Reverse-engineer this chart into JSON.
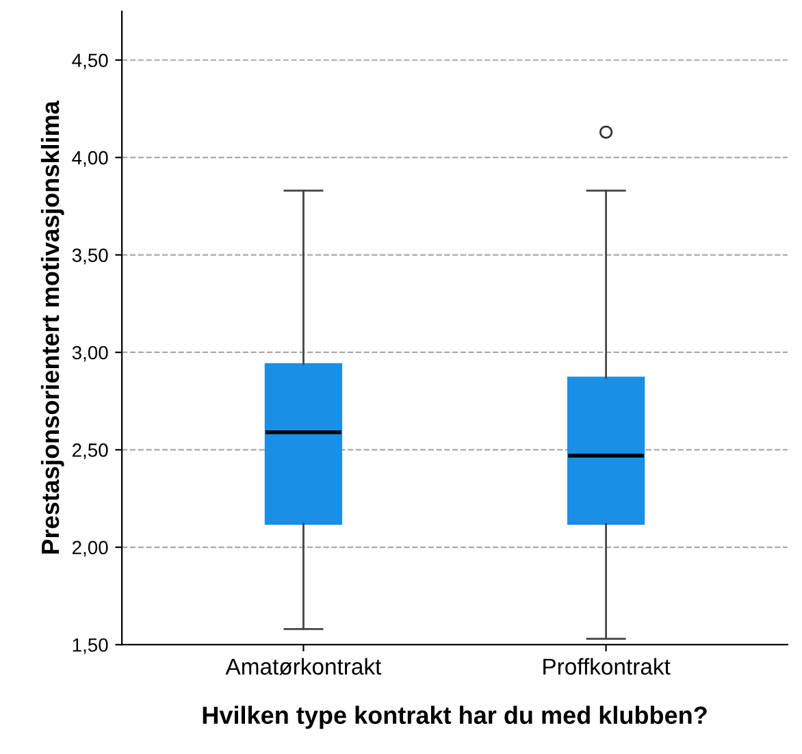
{
  "chart_data": {
    "type": "box",
    "xlabel": "Hvilken type kontrakt har du med klubben?",
    "ylabel": "Prestasjonsorientert motivasjonsklima",
    "categories": [
      "Amatørkontrakt",
      "Proffkontrakt"
    ],
    "series": [
      {
        "color": "#1a8fe6",
        "boxes": [
          {
            "low": 1.58,
            "q1": 2.12,
            "median": 2.59,
            "q3": 2.94,
            "high": 3.83
          },
          {
            "low": 1.53,
            "q1": 2.12,
            "median": 2.47,
            "q3": 2.87,
            "high": 3.83,
            "outliers": [
              4.13
            ]
          }
        ]
      }
    ],
    "ylim": [
      1.5,
      4.75
    ],
    "yticks": [
      {
        "value": 1.5,
        "label": "1,50"
      },
      {
        "value": 2.0,
        "label": "2,00"
      },
      {
        "value": 2.5,
        "label": "2,50"
      },
      {
        "value": 3.0,
        "label": "3,00"
      },
      {
        "value": 3.5,
        "label": "3,50"
      },
      {
        "value": 4.0,
        "label": "4,00"
      },
      {
        "value": 4.5,
        "label": "4,50"
      }
    ],
    "grid": "y"
  }
}
